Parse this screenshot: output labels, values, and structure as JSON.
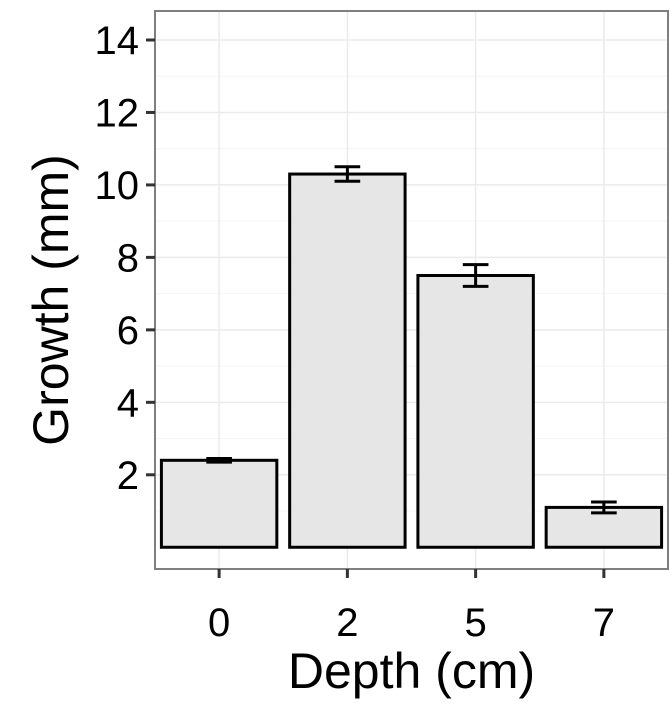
{
  "chart_data": {
    "type": "bar",
    "title": "",
    "xlabel": "Depth (cm)",
    "ylabel": "Growth (mm)",
    "categories": [
      "0",
      "2",
      "5",
      "7"
    ],
    "values": [
      2.4,
      10.3,
      7.5,
      1.1
    ],
    "error_bars": [
      {
        "low": 2.35,
        "high": 2.45
      },
      {
        "low": 10.1,
        "high": 10.5
      },
      {
        "low": 7.2,
        "high": 7.8
      },
      {
        "low": 0.95,
        "high": 1.25
      }
    ],
    "yticks": [
      "2",
      "4",
      "6",
      "8",
      "10",
      "12",
      "14"
    ],
    "ylim": [
      -0.6,
      14.8
    ],
    "grid": true,
    "colors": {
      "bar_fill": "#e6e6e6",
      "bar_stroke": "#000000",
      "panel_background": "#ffffff",
      "grid_major": "#ebebeb",
      "grid_minor": "#f5f5f5",
      "panel_border": "#7f7f7f"
    }
  }
}
